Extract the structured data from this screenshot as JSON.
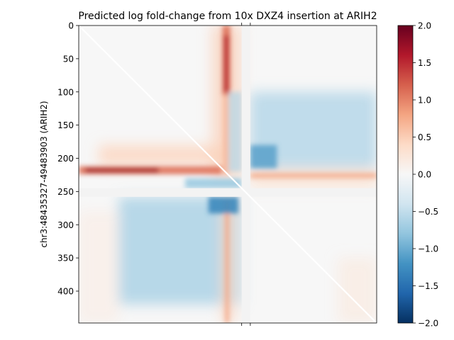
{
  "chart_data": {
    "type": "heatmap",
    "title": "Predicted log fold-change from 10x DXZ4 insertion at ARIH2",
    "xlabel": "",
    "ylabel": "chr3:48435327-49483903 (ARIH2)",
    "matrix_size": 448,
    "ylim": [
      448,
      0
    ],
    "yticks": [
      "0",
      "50",
      "100",
      "150",
      "200",
      "250",
      "300",
      "350",
      "400"
    ],
    "ytick_values": [
      0,
      50,
      100,
      150,
      200,
      250,
      300,
      350,
      400
    ],
    "xtick_values": [
      245,
      258
    ],
    "colorbar": {
      "colormap": "RdBu_r",
      "vmin": -2.0,
      "vmax": 2.0,
      "ticks": [
        "2.0",
        "1.5",
        "1.0",
        "0.5",
        "0.0",
        "−0.5",
        "−1.0",
        "−1.5",
        "−2.0"
      ],
      "tick_values": [
        2.0,
        1.5,
        1.0,
        0.5,
        0.0,
        -0.5,
        -1.0,
        -1.5,
        -2.0
      ]
    },
    "masked_bins": {
      "rows": [
        245,
        258
      ],
      "cols": [
        245,
        258
      ]
    },
    "features": {
      "red_stripe_row": {
        "center_bin": 218,
        "range": [
          0,
          215
        ],
        "value": 1.7
      },
      "red_stripe_col": {
        "center_bin": 222,
        "range": [
          0,
          105
        ],
        "value": 1.6
      },
      "blue_block_upper_right": {
        "rows": [
          100,
          215
        ],
        "cols": [
          258,
          448
        ],
        "value": -0.6
      },
      "blue_block_lower_left": {
        "rows": [
          258,
          420
        ],
        "cols": [
          60,
          245
        ],
        "value": -0.7
      },
      "diagonal_mask": true
    }
  }
}
